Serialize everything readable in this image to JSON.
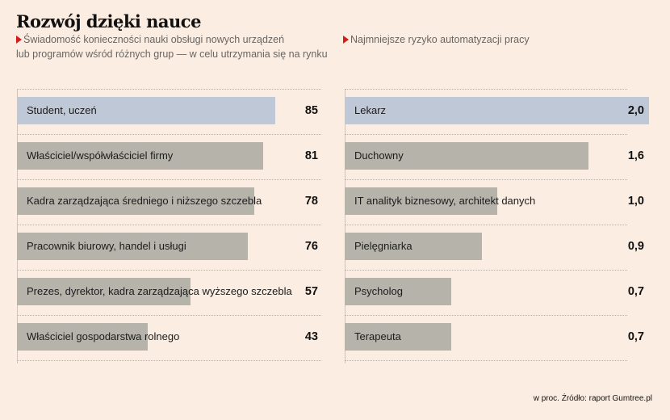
{
  "title": "Rozwój dzięki nauce",
  "source": "w proc. Źródło: raport Gumtree.pl",
  "colors": {
    "highlight": "#bfc8d6",
    "bar": "#b5b3aa",
    "marker": "#d41c1c",
    "background": "#fbede1"
  },
  "chart_data": [
    {
      "type": "bar",
      "orientation": "horizontal",
      "title": "Świadomość konieczności nauki obsługi nowych urządzeń lub programów wśród różnych grup — w celu utrzymania się na rynku",
      "subtitle_lines": [
        "Świadomość konieczności nauki obsługi nowych urządzeń",
        "lub programów wśród różnych grup — w celu utrzymania się na rynku"
      ],
      "unit": "%",
      "categories": [
        "Student, uczeń",
        "Właściciel/współwłaściciel firmy",
        "Kadra zarządzająca średniego i niższego szczebla",
        "Pracownik biurowy, handel i usługi",
        "Prezes, dyrektor, kadra zarządzająca wyższego szczebla",
        "Właściciel gospodarstwa rolnego"
      ],
      "values": [
        85,
        81,
        78,
        76,
        57,
        43
      ],
      "labels": [
        "85",
        "81",
        "78",
        "76",
        "57",
        "43"
      ],
      "highlighted_index": 0,
      "xlim": [
        0,
        85
      ]
    },
    {
      "type": "bar",
      "orientation": "horizontal",
      "title": "Najmniejsze ryzyko automatyzacji pracy",
      "subtitle_lines": [
        "Najmniejsze ryzyko automatyzacji pracy"
      ],
      "unit": "%",
      "categories": [
        "Lekarz",
        "Duchowny",
        "IT analityk biznesowy, architekt danych",
        "Pielęgniarka",
        "Psycholog",
        "Terapeuta"
      ],
      "values": [
        2.0,
        1.6,
        1.0,
        0.9,
        0.7,
        0.7
      ],
      "labels": [
        "2,0",
        "1,6",
        "1,0",
        "0,9",
        "0,7",
        "0,7"
      ],
      "highlighted_index": 0,
      "xlim": [
        0,
        2.0
      ]
    }
  ]
}
